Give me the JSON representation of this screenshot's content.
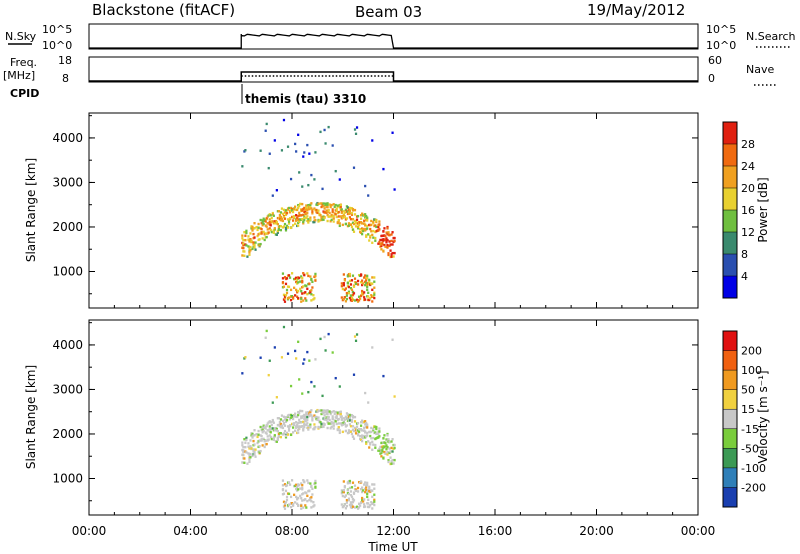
{
  "header": {
    "radar": "Blackstone (fitACF)",
    "beam": "Beam 03",
    "date": "19/May/2012"
  },
  "status_panels": {
    "nsky_label": "N.Sky",
    "nsky_ticks": [
      "10^5",
      "10^0"
    ],
    "freq_label_line1": "Freq.",
    "freq_label_line2": "[MHz]",
    "freq_ticks": [
      "18",
      "8"
    ],
    "nsearch_label": "N.Search",
    "nave_label": "Nave",
    "nave_ticks": [
      "60",
      "0"
    ],
    "cpid_label": "CPID",
    "cpid_value": "themis (tau) 3310",
    "active_start_hour": 6,
    "active_end_hour": 12
  },
  "chart_data": [
    {
      "type": "heatmap",
      "name": "power",
      "ylabel": "Slant Range [km]",
      "yticks": [
        "1000",
        "2000",
        "3000",
        "4000"
      ],
      "ylim": [
        180,
        4560
      ],
      "xlim": [
        0,
        24
      ],
      "colorbar_label": "Power [dB]",
      "colorbar_ticks": [
        "28",
        "24",
        "20",
        "16",
        "12",
        "8",
        "4"
      ],
      "colorbar_colors": [
        "#0000e6",
        "#2a4fb0",
        "#3a8a6e",
        "#6fbf3f",
        "#e8d030",
        "#f0a020",
        "#f06a10",
        "#e02010"
      ]
    },
    {
      "type": "heatmap",
      "name": "velocity",
      "xlabel": "Time UT",
      "ylabel": "Slant Range [km]",
      "yticks": [
        "1000",
        "2000",
        "3000",
        "4000"
      ],
      "ylim": [
        180,
        4560
      ],
      "xlim": [
        0,
        24
      ],
      "xticks": [
        "00:00",
        "04:00",
        "08:00",
        "12:00",
        "16:00",
        "20:00",
        "00:00"
      ],
      "colorbar_label": "Velocity [m s⁻¹]",
      "colorbar_ticks": [
        "200",
        "100",
        "50",
        "15",
        "-15",
        "-50",
        "-100",
        "-200"
      ],
      "colorbar_colors": [
        "#1a3fb0",
        "#2f7fb8",
        "#3c9a55",
        "#7acd3c",
        "#c8c8c8",
        "#f0d040",
        "#f09a20",
        "#f06010",
        "#e01010"
      ]
    }
  ]
}
